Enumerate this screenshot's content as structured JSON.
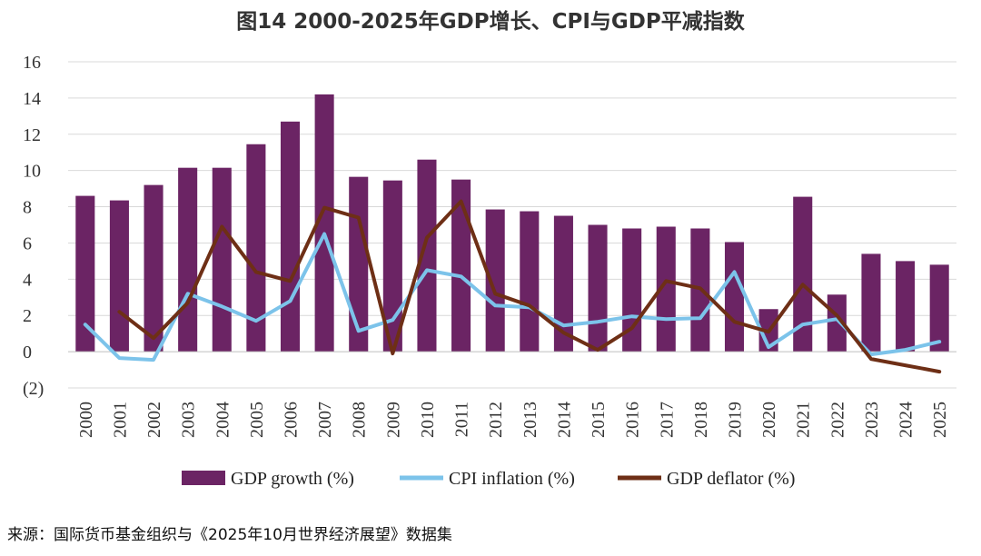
{
  "chart_data": {
    "type": "bar",
    "title": "图14 2000-2025年GDP增长、CPI与GDP平减指数",
    "categories": [
      "2000",
      "2001",
      "2002",
      "2003",
      "2004",
      "2005",
      "2006",
      "2007",
      "2008",
      "2009",
      "2010",
      "2011",
      "2012",
      "2013",
      "2014",
      "2015",
      "2016",
      "2017",
      "2018",
      "2019",
      "2020",
      "2021",
      "2022",
      "2023",
      "2024",
      "2025"
    ],
    "ylim": [
      -2,
      16
    ],
    "yticks": [
      -2,
      0,
      2,
      4,
      6,
      8,
      10,
      12,
      14,
      16
    ],
    "ytick_labels": [
      "(2)",
      "0",
      "2",
      "4",
      "6",
      "8",
      "10",
      "12",
      "14",
      "16"
    ],
    "grid": true,
    "legend_position": "bottom",
    "series": [
      {
        "name": "GDP growth (%)",
        "type": "bar",
        "color": "#6b2464",
        "values": [
          8.6,
          8.35,
          9.2,
          10.15,
          10.15,
          11.45,
          12.7,
          14.2,
          9.65,
          9.45,
          10.6,
          9.5,
          7.85,
          7.75,
          7.5,
          7.0,
          6.8,
          6.9,
          6.8,
          6.05,
          2.35,
          8.55,
          3.15,
          5.4,
          5.0,
          4.8
        ]
      },
      {
        "name": "CPI inflation (%)",
        "type": "line",
        "color": "#7cc3ea",
        "values": [
          1.5,
          -0.35,
          -0.45,
          3.2,
          2.5,
          1.7,
          2.8,
          6.5,
          1.15,
          1.75,
          4.5,
          4.15,
          2.55,
          2.45,
          1.45,
          1.65,
          1.95,
          1.8,
          1.85,
          4.4,
          0.25,
          1.5,
          1.8,
          -0.15,
          0.1,
          0.55
        ]
      },
      {
        "name": "GDP deflator (%)",
        "type": "line",
        "color": "#6e2f16",
        "values": [
          null,
          2.2,
          0.75,
          2.7,
          6.9,
          4.4,
          3.9,
          7.95,
          7.4,
          -0.1,
          6.3,
          8.3,
          3.2,
          2.55,
          1.05,
          0.1,
          1.3,
          3.9,
          3.5,
          1.65,
          1.1,
          3.7,
          2.0,
          -0.4,
          -0.75,
          -1.1
        ]
      }
    ]
  },
  "colors": {
    "negative_tick": "#c00000",
    "grid": "#d9d9d9",
    "axis": "#bfbfbf"
  },
  "source_note": "来源：国际货币基金组织与《2025年10月世界经济展望》数据集"
}
